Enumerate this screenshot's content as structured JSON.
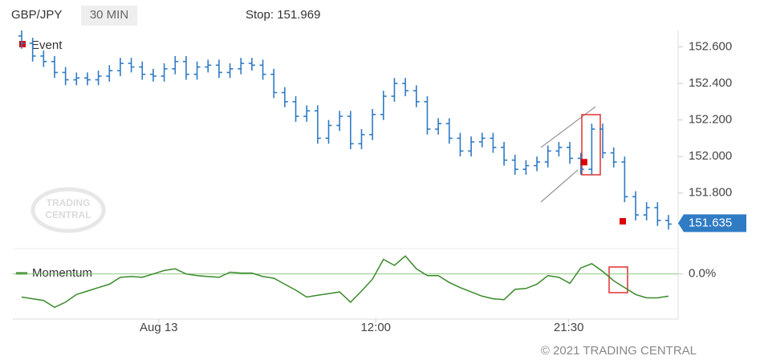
{
  "header": {
    "symbol": "GBP/JPY",
    "interval": "30 MIN",
    "stop_label": "Stop: 151.969"
  },
  "watermark": [
    "TRADING",
    "CENTRAL"
  ],
  "copyright": "© 2021 TRADING CENTRAL",
  "chart_data": [
    {
      "type": "ohlc",
      "color": "#2f7bc4",
      "event_label": "Event",
      "stop": 151.969,
      "last": 151.635,
      "xlim": [
        0,
        59
      ],
      "xticks": [
        {
          "value": 12.5,
          "label": "Aug 13"
        },
        {
          "value": 32.3,
          "label": "12:00"
        },
        {
          "value": 49.9,
          "label": "21:30"
        }
      ],
      "ylim": [
        151.54,
        152.69
      ],
      "yticks": [
        {
          "value": 152.6,
          "label": "152.600"
        },
        {
          "value": 152.4,
          "label": "152.400"
        },
        {
          "value": 152.2,
          "label": "152.200"
        },
        {
          "value": 152.0,
          "label": "152.000"
        },
        {
          "value": 151.8,
          "label": "151.800"
        }
      ],
      "open": [
        152.66,
        152.62,
        152.55,
        152.52,
        152.46,
        152.42,
        152.43,
        152.42,
        152.44,
        152.47,
        152.51,
        152.49,
        152.45,
        152.44,
        152.48,
        152.52,
        152.45,
        152.49,
        152.5,
        152.46,
        152.48,
        152.51,
        152.5,
        152.45,
        152.35,
        152.3,
        152.22,
        152.25,
        152.1,
        152.17,
        152.22,
        152.07,
        152.12,
        152.23,
        152.33,
        152.4,
        152.36,
        152.3,
        152.15,
        152.18,
        152.1,
        152.03,
        152.08,
        152.1,
        152.05,
        151.98,
        151.93,
        151.95,
        151.97,
        152.03,
        152.05,
        151.99,
        151.93,
        152.15,
        152.02,
        151.97,
        151.78,
        151.68,
        151.72,
        151.65
      ],
      "high": [
        152.69,
        152.65,
        152.58,
        152.55,
        152.49,
        152.46,
        152.46,
        152.47,
        152.5,
        152.54,
        152.54,
        152.52,
        152.48,
        152.51,
        152.55,
        152.55,
        152.52,
        152.53,
        152.53,
        152.51,
        152.54,
        152.54,
        152.53,
        152.48,
        152.38,
        152.33,
        152.28,
        152.28,
        152.2,
        152.25,
        152.25,
        152.15,
        152.26,
        152.36,
        152.43,
        152.43,
        152.39,
        152.33,
        152.21,
        152.21,
        152.13,
        152.11,
        152.13,
        152.13,
        152.08,
        152.01,
        151.98,
        152.0,
        152.06,
        152.08,
        152.08,
        152.02,
        152.18,
        152.18,
        152.05,
        152.0,
        151.81,
        151.75,
        151.75,
        151.68
      ],
      "low": [
        152.59,
        152.52,
        152.49,
        152.43,
        152.39,
        152.39,
        152.39,
        152.39,
        152.41,
        152.44,
        152.46,
        152.42,
        152.41,
        152.41,
        152.45,
        152.42,
        152.42,
        152.46,
        152.43,
        152.43,
        152.45,
        152.47,
        152.42,
        152.32,
        152.27,
        152.19,
        152.19,
        152.07,
        152.07,
        152.14,
        152.04,
        152.04,
        152.09,
        152.2,
        152.3,
        152.33,
        152.27,
        152.12,
        152.12,
        152.07,
        152.0,
        152.0,
        152.05,
        152.02,
        151.95,
        151.9,
        151.9,
        151.92,
        151.94,
        152.0,
        151.96,
        151.9,
        151.9,
        151.99,
        151.94,
        151.75,
        151.65,
        151.65,
        151.62,
        151.6
      ],
      "close": [
        152.62,
        152.55,
        152.52,
        152.46,
        152.42,
        152.43,
        152.42,
        152.44,
        152.47,
        152.51,
        152.49,
        152.45,
        152.44,
        152.48,
        152.52,
        152.45,
        152.49,
        152.5,
        152.46,
        152.48,
        152.51,
        152.5,
        152.45,
        152.35,
        152.3,
        152.22,
        152.25,
        152.1,
        152.17,
        152.22,
        152.07,
        152.12,
        152.23,
        152.33,
        152.4,
        152.36,
        152.3,
        152.15,
        152.18,
        152.1,
        152.03,
        152.08,
        152.1,
        152.05,
        151.98,
        151.93,
        151.95,
        151.97,
        152.03,
        152.05,
        151.99,
        151.93,
        152.15,
        152.02,
        151.97,
        151.78,
        151.68,
        151.72,
        151.65,
        151.63
      ]
    },
    {
      "type": "line",
      "name": "Momentum",
      "color": "#3a8a2a",
      "xlim": [
        0,
        59
      ],
      "ylim": [
        -0.5,
        0.25
      ],
      "yticks": [
        {
          "value": 0,
          "label": "0.0%"
        }
      ],
      "grid": true,
      "values": [
        -0.27,
        -0.29,
        -0.31,
        -0.39,
        -0.33,
        -0.24,
        -0.2,
        -0.16,
        -0.12,
        -0.04,
        -0.03,
        -0.04,
        0.0,
        0.04,
        0.06,
        0.0,
        -0.02,
        -0.03,
        -0.04,
        0.02,
        0.01,
        0.01,
        -0.03,
        -0.05,
        -0.12,
        -0.19,
        -0.27,
        -0.25,
        -0.23,
        -0.21,
        -0.33,
        -0.2,
        -0.06,
        0.17,
        0.1,
        0.21,
        0.06,
        -0.02,
        -0.02,
        -0.1,
        -0.16,
        -0.21,
        -0.26,
        -0.29,
        -0.3,
        -0.18,
        -0.17,
        -0.12,
        -0.02,
        -0.04,
        -0.11,
        0.07,
        0.12,
        0.03,
        -0.08,
        -0.16,
        -0.24,
        -0.28,
        -0.28,
        -0.26
      ]
    }
  ]
}
